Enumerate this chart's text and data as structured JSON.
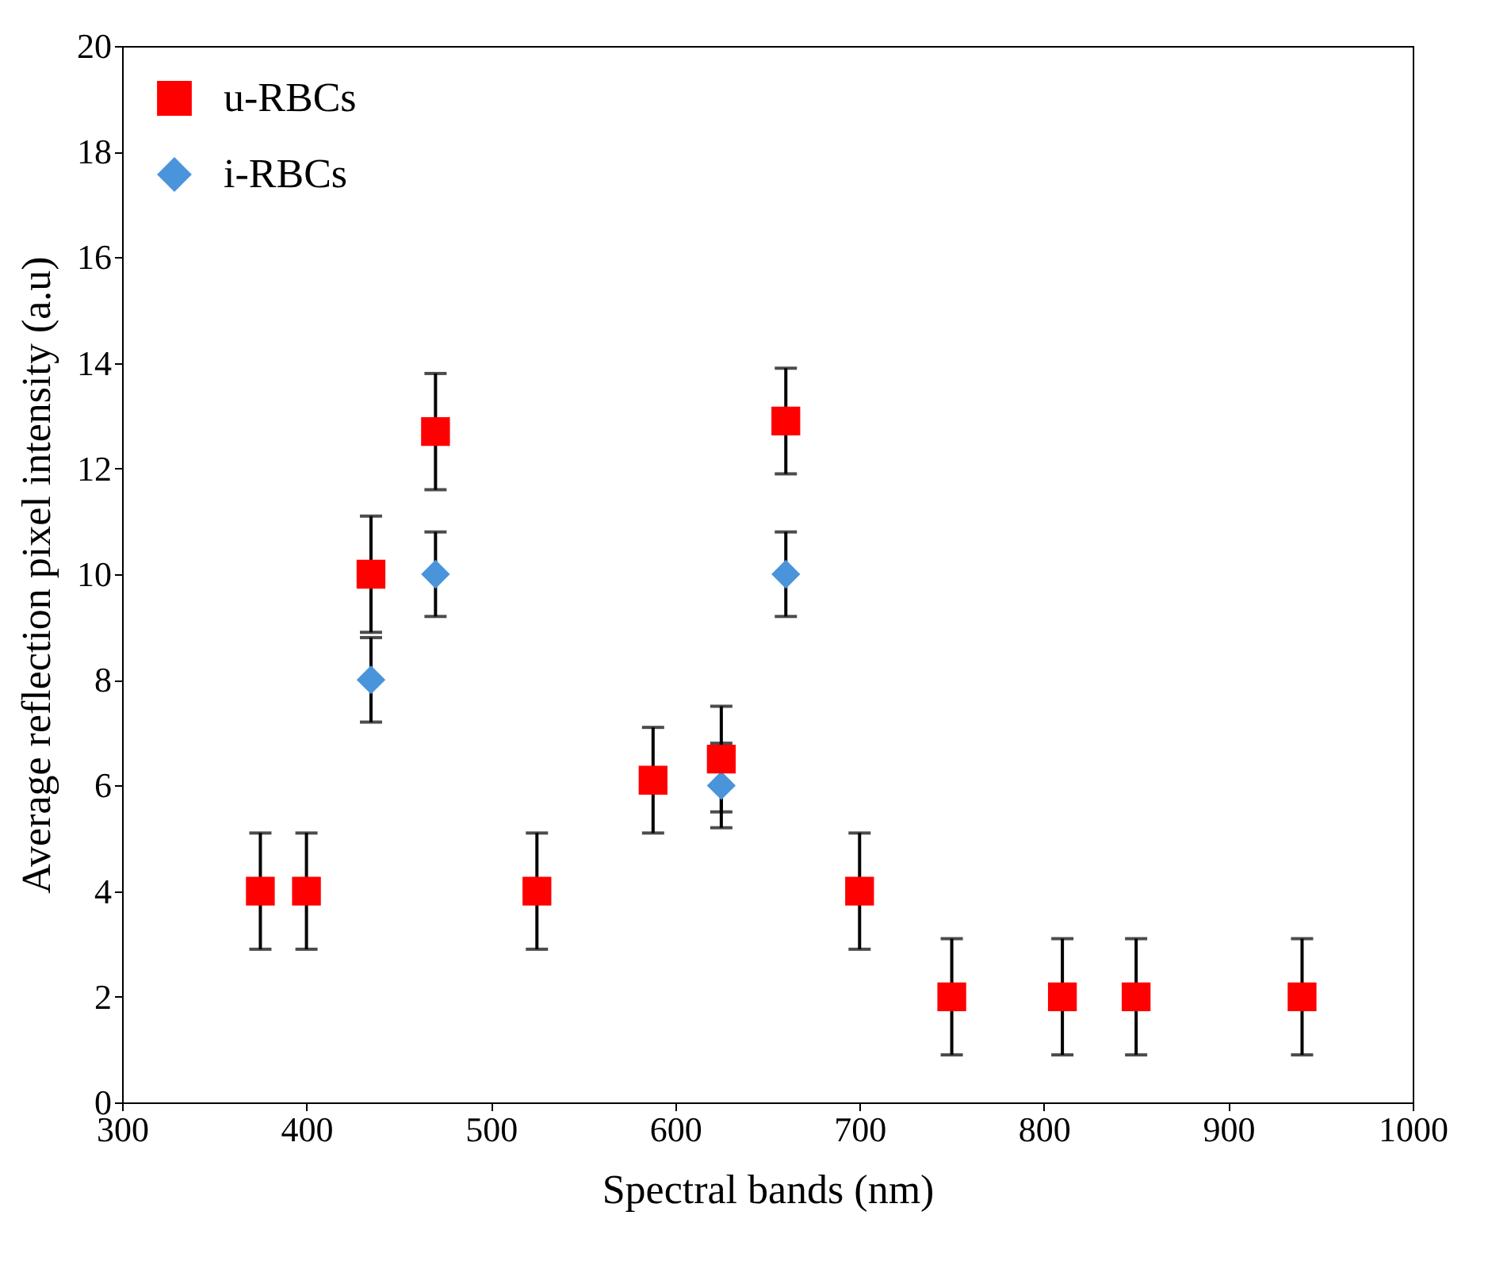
{
  "chart_data": {
    "type": "scatter",
    "xlabel": "Spectral bands (nm)",
    "ylabel": "Average reflection pixel intensity (a.u)",
    "x": [
      375,
      400,
      435,
      470,
      525,
      588,
      625,
      660,
      700,
      750,
      810,
      850,
      940
    ],
    "series": [
      {
        "name": "u-RBCs",
        "color": "#ff0000",
        "marker": "square",
        "values": [
          4,
          4,
          10,
          12.7,
          4,
          6.1,
          6.5,
          12.9,
          4,
          2,
          2,
          2,
          2
        ],
        "errors": [
          1.1,
          1.1,
          1.1,
          1.1,
          1.1,
          1.0,
          1.0,
          1.0,
          1.1,
          1.1,
          1.1,
          1.1,
          1.1
        ]
      },
      {
        "name": "i-RBCs",
        "color": "#4a94dc",
        "marker": "diamond",
        "values": [
          null,
          null,
          8,
          10,
          null,
          null,
          6,
          10,
          null,
          null,
          null,
          null,
          null
        ],
        "errors": [
          null,
          null,
          0.8,
          0.8,
          null,
          null,
          0.8,
          0.8,
          null,
          null,
          null,
          null,
          null
        ]
      }
    ],
    "legend": "top left",
    "grid": false,
    "xlim": [
      300,
      1000
    ],
    "xticks": [
      300,
      400,
      500,
      600,
      700,
      800,
      900,
      1000
    ],
    "ylim": [
      0,
      20
    ],
    "yticks": [
      0,
      2,
      4,
      6,
      8,
      10,
      12,
      14,
      16,
      18,
      20
    ]
  }
}
